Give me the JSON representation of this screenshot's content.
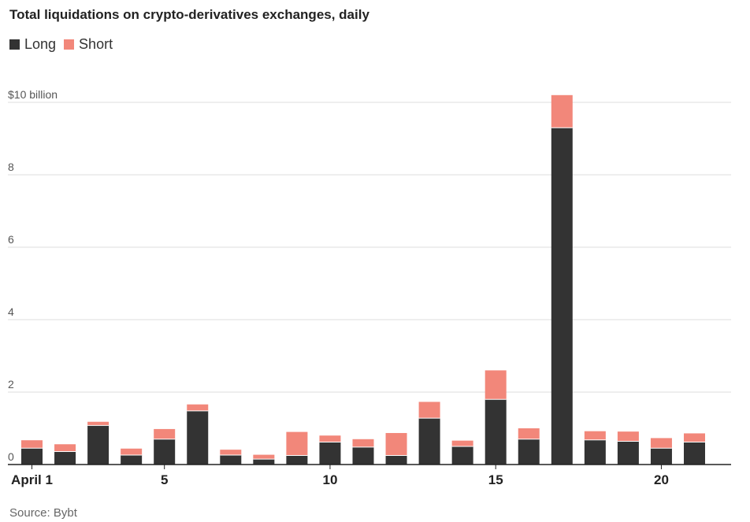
{
  "title": "Total liquidations on crypto-derivatives exchanges, daily",
  "source": "Source: Bybt",
  "colors": {
    "long": "#333333",
    "short": "#f2877a",
    "grid": "#dcdcdc",
    "axis": "#222222"
  },
  "legend": [
    {
      "key": "long",
      "label": "Long"
    },
    {
      "key": "short",
      "label": "Short"
    }
  ],
  "chart_data": {
    "type": "bar",
    "stacked": true,
    "title": "Total liquidations on crypto-derivatives exchanges, daily",
    "xlabel": "",
    "ylabel": "",
    "ylim": [
      0,
      10
    ],
    "yticks": [
      0,
      2,
      4,
      6,
      8,
      10
    ],
    "ytick_labels": [
      "0",
      "2",
      "4",
      "6",
      "8",
      "$10 billion"
    ],
    "categories": [
      1,
      2,
      3,
      4,
      5,
      6,
      7,
      8,
      9,
      10,
      11,
      12,
      13,
      14,
      15,
      16,
      17,
      18,
      19,
      20,
      21
    ],
    "xtick_positions": [
      1,
      5,
      10,
      15,
      20
    ],
    "xtick_labels": [
      "April 1",
      "5",
      "10",
      "15",
      "20"
    ],
    "series": [
      {
        "name": "Long",
        "values": [
          0.45,
          0.36,
          1.08,
          0.26,
          0.7,
          1.48,
          0.26,
          0.15,
          0.25,
          0.62,
          0.48,
          0.25,
          1.28,
          0.5,
          1.8,
          0.7,
          9.3,
          0.68,
          0.64,
          0.45,
          0.62
        ]
      },
      {
        "name": "Short",
        "values": [
          0.22,
          0.2,
          0.1,
          0.18,
          0.28,
          0.18,
          0.15,
          0.12,
          0.65,
          0.18,
          0.22,
          0.62,
          0.45,
          0.16,
          0.8,
          0.3,
          0.9,
          0.24,
          0.27,
          0.28,
          0.24
        ]
      }
    ],
    "grid": true,
    "legend_position": "top-left"
  }
}
